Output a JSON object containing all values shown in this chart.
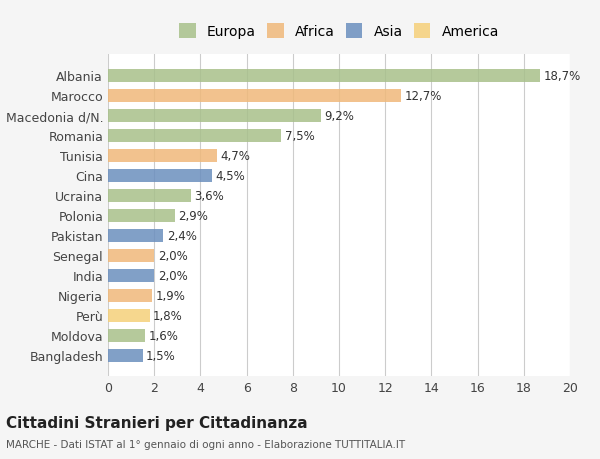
{
  "countries": [
    "Albania",
    "Marocco",
    "Macedonia d/N.",
    "Romania",
    "Tunisia",
    "Cina",
    "Ucraina",
    "Polonia",
    "Pakistan",
    "Senegal",
    "India",
    "Nigeria",
    "Perù",
    "Moldova",
    "Bangladesh"
  ],
  "values": [
    18.7,
    12.7,
    9.2,
    7.5,
    4.7,
    4.5,
    3.6,
    2.9,
    2.4,
    2.0,
    2.0,
    1.9,
    1.8,
    1.6,
    1.5
  ],
  "labels": [
    "18,7%",
    "12,7%",
    "9,2%",
    "7,5%",
    "4,7%",
    "4,5%",
    "3,6%",
    "2,9%",
    "2,4%",
    "2,0%",
    "2,0%",
    "1,9%",
    "1,8%",
    "1,6%",
    "1,5%"
  ],
  "continents": [
    "Europa",
    "Africa",
    "Europa",
    "Europa",
    "Africa",
    "Asia",
    "Europa",
    "Europa",
    "Asia",
    "Africa",
    "Asia",
    "Africa",
    "America",
    "Europa",
    "Asia"
  ],
  "colors": {
    "Europa": "#a8c08a",
    "Africa": "#f0b87a",
    "Asia": "#6b8fbe",
    "America": "#f5d07a"
  },
  "legend_order": [
    "Europa",
    "Africa",
    "Asia",
    "America"
  ],
  "xlim": [
    0,
    20
  ],
  "xticks": [
    0,
    2,
    4,
    6,
    8,
    10,
    12,
    14,
    16,
    18,
    20
  ],
  "title": "Cittadini Stranieri per Cittadinanza",
  "subtitle": "MARCHE - Dati ISTAT al 1° gennaio di ogni anno - Elaborazione TUTTITALIA.IT",
  "background_color": "#f5f5f5",
  "bar_background": "#ffffff",
  "grid_color": "#cccccc"
}
